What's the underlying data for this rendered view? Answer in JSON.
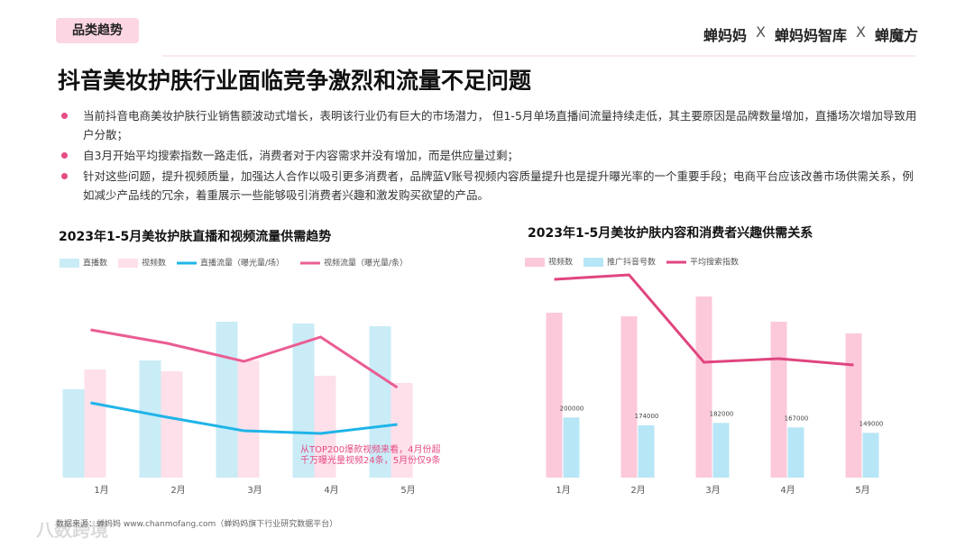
{
  "header": {
    "tag": "品类趋势",
    "logos": [
      "蝉妈妈",
      "X",
      "蝉妈妈智库",
      "X",
      "蝉魔方"
    ]
  },
  "title": "抖音美妆护肤行业面临竞争激烈和流量不足问题",
  "bullets": [
    "当前抖音电商美妆护肤行业销售额波动式增长，表明该行业仍有巨大的市场潜力， 但1-5月单场直播间流量持续走低，其主要原因是品牌数量增加，直播场次增加导致用户分散；",
    "自3月开始平均搜索指数一路走低，消费者对于内容需求并没有增加，而是供应量过剩；",
    "针对这些问题，提升视频质量，加强达人合作以吸引更多消费者，品牌蓝V账号视频内容质量提升也是提升曝光率的一个重要手段；电商平台应该改善市场供需关系，例如减少产品线的冗余，着重展示一些能够吸引消费者兴趣和激发购买欲望的产品。"
  ],
  "footer": "数据来源：蝉妈妈 www.chanmofang.com（蝉妈妈旗下行业研究数据平台）",
  "watermark": "八数跨境",
  "chart_data": [
    {
      "type": "bar",
      "title": "2023年1-5月美妆护肤直播和视频流量供需趋势",
      "categories": [
        "1月",
        "2月",
        "3月",
        "4月",
        "5月"
      ],
      "ylim": [
        0,
        240
      ],
      "series": [
        {
          "name": "直播数",
          "type": "bar",
          "color": "#c9ecf7",
          "values": [
            98,
            130,
            173,
            171,
            168
          ]
        },
        {
          "name": "视频数",
          "type": "bar",
          "color": "#fde0ea",
          "values": [
            120,
            118,
            130,
            113,
            105
          ]
        },
        {
          "name": "直播流量（曝光量/场）",
          "type": "line",
          "color": "#1fb4e8",
          "values": [
            83,
            67,
            52,
            49,
            59
          ]
        },
        {
          "name": "视频流量（曝光量/条）",
          "type": "line",
          "color": "#ea5d93",
          "values": [
            164,
            149,
            129,
            156,
            100
          ]
        }
      ],
      "annotation": "从TOP200爆款视频来看，4月份超千万曝光量视频24条，5月份仅9条"
    },
    {
      "type": "bar",
      "title": "2023年1-5月美妆护肤内容和消费者兴趣供需关系",
      "categories": [
        "1月",
        "2月",
        "3月",
        "4月",
        "5月"
      ],
      "ylim": [
        0,
        240
      ],
      "y2lim": [
        0,
        720000
      ],
      "series": [
        {
          "name": "视频数",
          "type": "bar",
          "color": "#fcc9da",
          "values": [
            183,
            179,
            201,
            173,
            160
          ]
        },
        {
          "name": "推广抖音号数",
          "type": "bar",
          "axis": "y2",
          "color": "#b7e6f6",
          "data_labels": true,
          "values": [
            200000,
            174000,
            182000,
            167000,
            149000
          ]
        },
        {
          "name": "平均搜索指数",
          "type": "line",
          "color": "#e0457f",
          "values": [
            220,
            225,
            128,
            132,
            125
          ]
        }
      ]
    }
  ]
}
